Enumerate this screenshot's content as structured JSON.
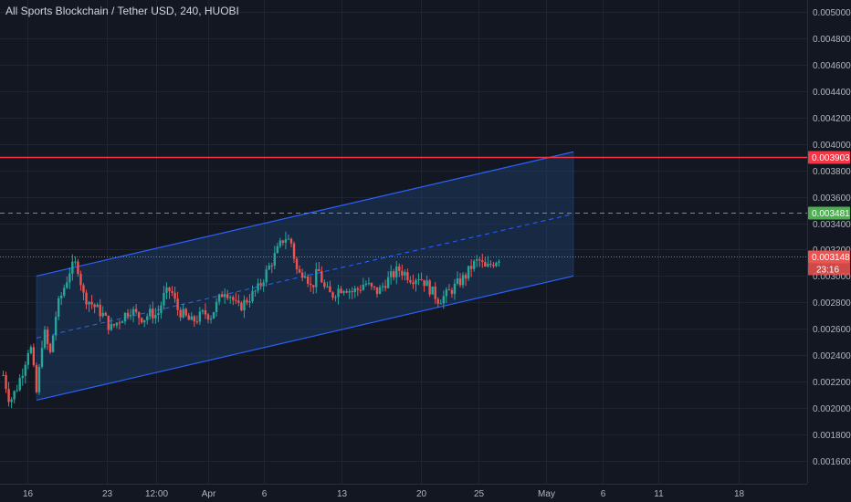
{
  "header": {
    "title": "All Sports Blockchain / Tether USD, 240, HUOBI"
  },
  "colors": {
    "background": "#131722",
    "grid": "#1f2433",
    "up": "#26a69a",
    "down": "#ef5350",
    "channel_line": "#2962ff",
    "channel_fill": "#1e3a5f",
    "resistance": "#f23645",
    "target": "#4caf50",
    "last_price": "#ef5350"
  },
  "chart_data": {
    "type": "candlestick",
    "title": "All Sports Blockchain / Tether USD, 240, HUOBI",
    "x_axis": {
      "tick_labels": [
        "16",
        "23",
        "12:00",
        "Apr",
        "6",
        "13",
        "20",
        "25",
        "May",
        "6",
        "11",
        "18"
      ]
    },
    "y_axis": {
      "range": [
        0.00145,
        0.00511
      ],
      "tick_labels": [
        "0.005000",
        "0.004800",
        "0.004600",
        "0.004400",
        "0.004200",
        "0.004000",
        "0.003800",
        "0.003600",
        "0.003400",
        "0.003200",
        "0.003000",
        "0.002800",
        "0.002600",
        "0.002400",
        "0.002200",
        "0.002000",
        "0.001800",
        "0.001600"
      ],
      "tick_values": [
        0.005,
        0.0048,
        0.0046,
        0.0044,
        0.0042,
        0.004,
        0.0038,
        0.0036,
        0.0034,
        0.0032,
        0.003,
        0.0028,
        0.0026,
        0.0024,
        0.0022,
        0.002,
        0.0018,
        0.0016
      ]
    },
    "levels": [
      {
        "name": "resistance",
        "value": 0.003903,
        "label": "0.003903",
        "style": "solid",
        "color": "#f23645"
      },
      {
        "name": "target",
        "value": 0.003481,
        "label": "0.003481",
        "style": "dashed",
        "color": "#4caf50"
      },
      {
        "name": "last-price",
        "value": 0.003148,
        "label": "0.003148",
        "style": "dotted",
        "color": "#ef5350"
      }
    ],
    "countdown": "23:16",
    "channel": {
      "lower_start": 0.00206,
      "lower_end": 0.003,
      "upper_start": 0.003,
      "upper_end": 0.00394,
      "mid_start": 0.00253,
      "mid_end": 0.00347
    },
    "price_path": [
      0.00225,
      0.00205,
      0.00215,
      0.0023,
      0.0025,
      0.0021,
      0.0026,
      0.0024,
      0.00275,
      0.0029,
      0.00305,
      0.0031,
      0.00285,
      0.0028,
      0.00275,
      0.0027,
      0.0026,
      0.00265,
      0.0027,
      0.00275,
      0.0027,
      0.00268,
      0.00272,
      0.0027,
      0.00285,
      0.0029,
      0.00275,
      0.0027,
      0.00265,
      0.00268,
      0.00272,
      0.0027,
      0.0028,
      0.0029,
      0.00285,
      0.00275,
      0.0028,
      0.00285,
      0.0029,
      0.003,
      0.0031,
      0.0032,
      0.0033,
      0.00325,
      0.003,
      0.00305,
      0.0029,
      0.00305,
      0.0029,
      0.00285,
      0.0029,
      0.00292,
      0.00288,
      0.0029,
      0.00295,
      0.0029,
      0.00288,
      0.00295,
      0.003,
      0.00305,
      0.00302,
      0.00298,
      0.003,
      0.00295,
      0.00288,
      0.00282,
      0.00285,
      0.0029,
      0.00295,
      0.003,
      0.00308,
      0.00312,
      0.00305,
      0.0031,
      0.00314
    ]
  }
}
